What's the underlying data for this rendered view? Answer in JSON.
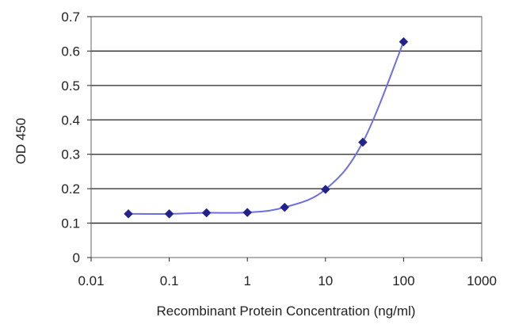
{
  "chart_data": {
    "type": "line",
    "title": "",
    "xlabel": "Recombinant Protein Concentration (ng/ml)",
    "ylabel": "OD 450",
    "x_scale": "log",
    "xlim": [
      0.01,
      1000
    ],
    "ylim": [
      0,
      0.7
    ],
    "x_ticks": [
      "0.01",
      "0.1",
      "1",
      "10",
      "100",
      "1000"
    ],
    "y_ticks": [
      "0",
      "0.1",
      "0.2",
      "0.3",
      "0.4",
      "0.5",
      "0.6",
      "0.7"
    ],
    "grid": "horizontal",
    "legend": "none",
    "series": [
      {
        "x": [
          0.03,
          0.1,
          0.3,
          1,
          3,
          10,
          30,
          100
        ],
        "y": [
          0.127,
          0.127,
          0.13,
          0.131,
          0.146,
          0.198,
          0.335,
          0.627
        ],
        "color": "#22228a",
        "line_color": "#6e6ee0"
      }
    ],
    "plot_background": "#ffffff",
    "gridline_color": "#222222",
    "border_color": "#666666"
  }
}
